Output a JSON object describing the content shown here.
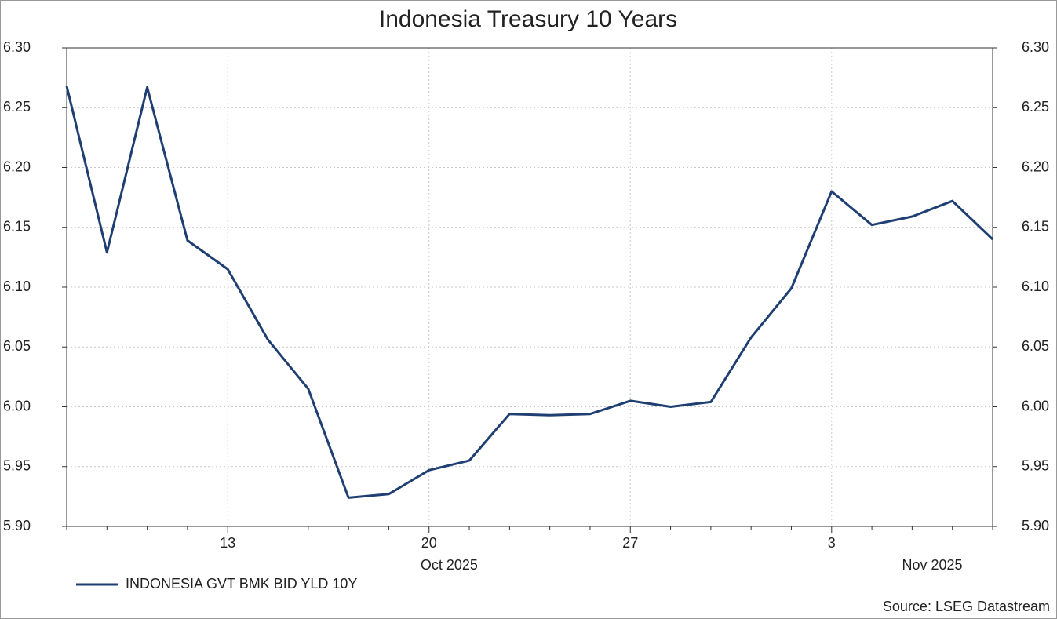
{
  "chart_data": {
    "type": "line",
    "title": "Indonesia Treasury 10 Years",
    "categories": [
      null,
      null,
      null,
      null,
      "13",
      null,
      null,
      null,
      null,
      "20",
      null,
      null,
      null,
      null,
      "27",
      null,
      null,
      null,
      null,
      "3",
      null,
      null,
      null,
      null
    ],
    "month_labels": [
      null,
      null,
      null,
      null,
      null,
      null,
      null,
      null,
      null,
      "Oct 2025",
      null,
      null,
      null,
      null,
      null,
      null,
      null,
      null,
      null,
      null,
      null,
      "Nov 2025",
      null,
      null
    ],
    "series": [
      {
        "name": "INDONESIA GVT BMK BID YLD 10Y",
        "color": "#1f3f73",
        "values": [
          6.268,
          6.129,
          6.267,
          6.139,
          6.115,
          6.056,
          6.015,
          5.924,
          5.927,
          5.947,
          5.955,
          5.994,
          5.993,
          5.994,
          6.005,
          6.0,
          6.004,
          6.058,
          6.099,
          6.18,
          6.152,
          6.159,
          6.172,
          6.14
        ]
      }
    ],
    "ylim": [
      5.9,
      6.3
    ],
    "yticks": [
      {
        "value": 5.9,
        "label": "5.90"
      },
      {
        "value": 5.95,
        "label": "5.95"
      },
      {
        "value": 6.0,
        "label": "6.00"
      },
      {
        "value": 6.05,
        "label": "6.05"
      },
      {
        "value": 6.1,
        "label": "6.10"
      },
      {
        "value": 6.15,
        "label": "6.15"
      },
      {
        "value": 6.2,
        "label": "6.20"
      },
      {
        "value": 6.25,
        "label": "6.25"
      },
      {
        "value": 6.3,
        "label": "6.30"
      }
    ],
    "y2lim": [
      5.9,
      6.3
    ],
    "y2ticks": [
      {
        "value": 5.9,
        "label": "5.90"
      },
      {
        "value": 5.95,
        "label": "5.95"
      },
      {
        "value": 6.0,
        "label": "6.00"
      },
      {
        "value": 6.05,
        "label": "6.05"
      },
      {
        "value": 6.1,
        "label": "6.10"
      },
      {
        "value": 6.15,
        "label": "6.15"
      },
      {
        "value": 6.2,
        "label": "6.20"
      },
      {
        "value": 6.25,
        "label": "6.25"
      },
      {
        "value": 6.3,
        "label": "6.30"
      }
    ],
    "grid": true,
    "source": "Source: LSEG Datastream"
  }
}
